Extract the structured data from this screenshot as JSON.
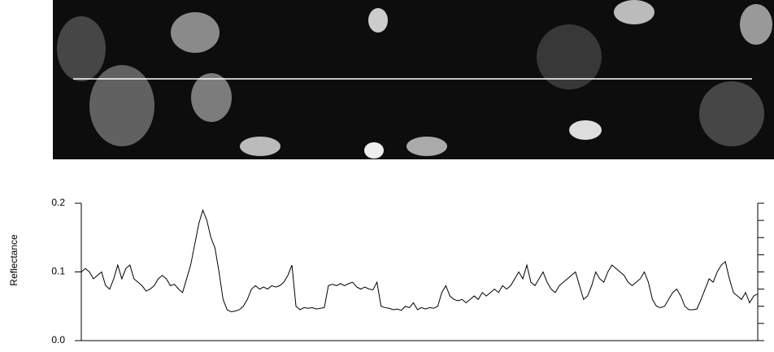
{
  "chart_data": {
    "type": "line",
    "ylabel": "Reflectance",
    "ylim": [
      0,
      0.2
    ],
    "yticks": [
      {
        "value": 0,
        "label": "0.0"
      },
      0.1,
      0.2
    ],
    "yminorticks": [
      0.025,
      0.05,
      0.075,
      0.125,
      0.15,
      0.175
    ],
    "color": "#000000",
    "values": [
      0.1,
      0.105,
      0.1,
      0.09,
      0.095,
      0.1,
      0.08,
      0.075,
      0.09,
      0.11,
      0.09,
      0.105,
      0.11,
      0.09,
      0.085,
      0.08,
      0.072,
      0.075,
      0.08,
      0.09,
      0.095,
      0.09,
      0.08,
      0.082,
      0.075,
      0.07,
      0.09,
      0.11,
      0.14,
      0.17,
      0.19,
      0.175,
      0.15,
      0.135,
      0.1,
      0.06,
      0.045,
      0.042,
      0.043,
      0.045,
      0.05,
      0.06,
      0.075,
      0.08,
      0.075,
      0.078,
      0.075,
      0.08,
      0.078,
      0.08,
      0.085,
      0.095,
      0.11,
      0.05,
      0.045,
      0.048,
      0.047,
      0.048,
      0.046,
      0.047,
      0.048,
      0.08,
      0.082,
      0.08,
      0.083,
      0.08,
      0.083,
      0.085,
      0.078,
      0.075,
      0.078,
      0.075,
      0.074,
      0.085,
      0.05,
      0.048,
      0.047,
      0.045,
      0.046,
      0.044,
      0.05,
      0.048,
      0.055,
      0.045,
      0.048,
      0.046,
      0.048,
      0.047,
      0.05,
      0.07,
      0.08,
      0.065,
      0.06,
      0.058,
      0.06,
      0.055,
      0.06,
      0.065,
      0.06,
      0.07,
      0.065,
      0.07,
      0.075,
      0.07,
      0.08,
      0.075,
      0.08,
      0.09,
      0.1,
      0.09,
      0.11,
      0.085,
      0.08,
      0.09,
      0.1,
      0.085,
      0.075,
      0.07,
      0.08,
      0.085,
      0.09,
      0.095,
      0.1,
      0.08,
      0.06,
      0.065,
      0.08,
      0.1,
      0.09,
      0.085,
      0.1,
      0.11,
      0.105,
      0.1,
      0.095,
      0.085,
      0.08,
      0.085,
      0.09,
      0.1,
      0.085,
      0.06,
      0.05,
      0.048,
      0.05,
      0.06,
      0.07,
      0.075,
      0.065,
      0.05,
      0.045,
      0.045,
      0.046,
      0.06,
      0.075,
      0.09,
      0.085,
      0.1,
      0.11,
      0.115,
      0.09,
      0.07,
      0.065,
      0.06,
      0.07,
      0.055,
      0.065,
      0.068
    ]
  }
}
